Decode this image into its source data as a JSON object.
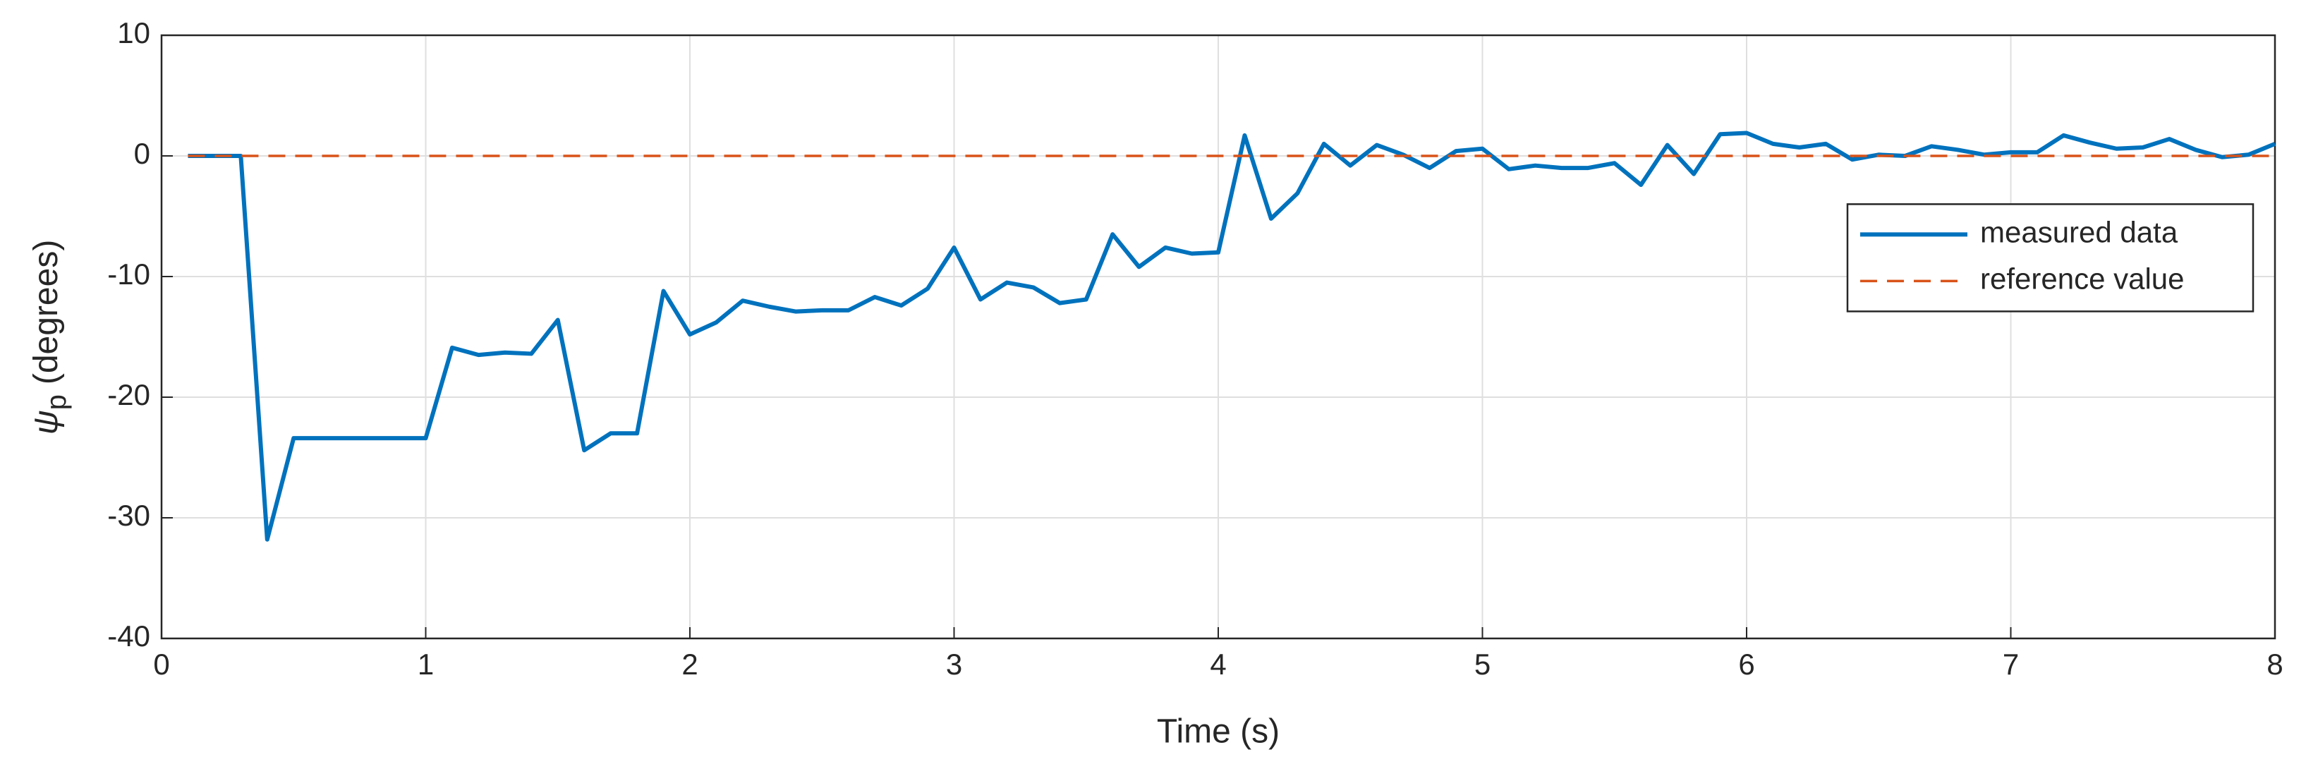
{
  "chart_data": {
    "type": "line",
    "xlabel": "Time (s)",
    "ylabel": "ψ",
    "ylabel_subscript": "p",
    "ylabel_unit": "(degrees)",
    "xlim": [
      0,
      8
    ],
    "xticks": [
      0,
      1,
      2,
      3,
      4,
      5,
      6,
      7,
      8
    ],
    "ylim": [
      -40,
      10
    ],
    "yticks": [
      -40,
      -30,
      -20,
      -10,
      0,
      10
    ],
    "grid": true,
    "legend_loc": "east",
    "series": [
      {
        "name": "measured data",
        "color": "#0072BD",
        "linestyle": "solid",
        "x": [
          0.1,
          0.2,
          0.3,
          0.4,
          0.5,
          0.6,
          0.7,
          0.8,
          0.9,
          1.0,
          1.1,
          1.2,
          1.3,
          1.4,
          1.5,
          1.6,
          1.7,
          1.8,
          1.9,
          2.0,
          2.1,
          2.2,
          2.3,
          2.4,
          2.5,
          2.6,
          2.7,
          2.8,
          2.9,
          3.0,
          3.1,
          3.2,
          3.3,
          3.4,
          3.5,
          3.6,
          3.7,
          3.8,
          3.9,
          4.0,
          4.1,
          4.2,
          4.3,
          4.4,
          4.5,
          4.6,
          4.7,
          4.8,
          4.9,
          5.0,
          5.1,
          5.2,
          5.3,
          5.4,
          5.5,
          5.6,
          5.7,
          5.8,
          5.9,
          6.0,
          6.1,
          6.2,
          6.3,
          6.4,
          6.5,
          6.6,
          6.7,
          6.8,
          6.9,
          7.0,
          7.1,
          7.2,
          7.3,
          7.4,
          7.5,
          7.6,
          7.7,
          7.8,
          7.9,
          8.0
        ],
        "values": [
          0,
          0,
          0,
          -31.8,
          -23.4,
          -23.4,
          -23.4,
          -23.4,
          -23.4,
          -23.4,
          -15.9,
          -16.5,
          -16.3,
          -16.4,
          -13.6,
          -24.4,
          -23.0,
          -23.0,
          -11.2,
          -14.8,
          -13.8,
          -12.0,
          -12.5,
          -12.9,
          -12.8,
          -12.8,
          -11.7,
          -12.4,
          -11.0,
          -7.6,
          -11.9,
          -10.5,
          -10.9,
          -12.2,
          -11.9,
          -6.5,
          -9.2,
          -7.6,
          -8.1,
          -8.0,
          1.7,
          -5.2,
          -3.1,
          1.0,
          -0.8,
          0.9,
          0.1,
          -1.0,
          0.4,
          0.6,
          -1.1,
          -0.8,
          -1.0,
          -1.0,
          -0.6,
          -2.4,
          0.9,
          -1.5,
          1.8,
          1.9,
          1.0,
          0.7,
          1.0,
          -0.3,
          0.1,
          0.0,
          0.8,
          0.5,
          0.1,
          0.3,
          0.3,
          1.7,
          1.1,
          0.6,
          0.7,
          1.4,
          0.5,
          -0.1,
          0.1,
          1.0
        ]
      },
      {
        "name": "reference value",
        "color": "#D95319",
        "linestyle": "dashed",
        "x": [
          0.1,
          8.0
        ],
        "values": [
          0,
          0
        ]
      }
    ]
  }
}
